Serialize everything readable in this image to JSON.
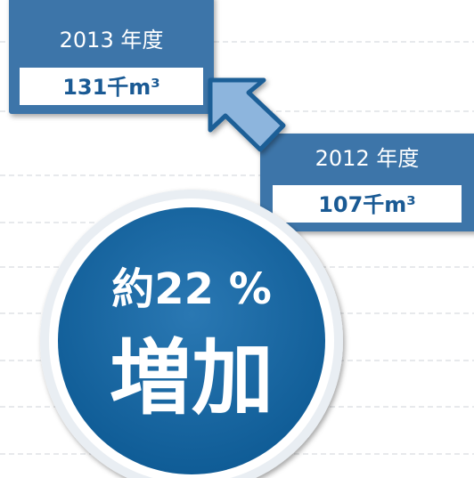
{
  "boxes": [
    {
      "year": "2013 年度",
      "amount": "131千m³"
    },
    {
      "year": "2012 年度",
      "amount": "107千m³"
    }
  ],
  "badge": {
    "rate": "約22 %",
    "label": "増加"
  }
}
